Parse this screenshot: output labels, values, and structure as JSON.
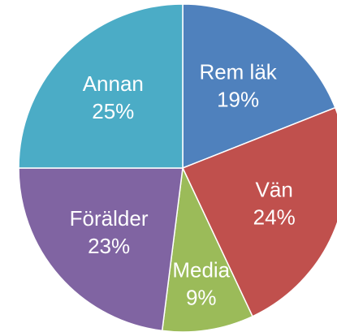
{
  "chart_data": {
    "type": "pie",
    "categories": [
      "Rem läk",
      "Vän",
      "Media",
      "Förälder",
      "Annan"
    ],
    "values": [
      19,
      24,
      9,
      23,
      25
    ],
    "value_labels": [
      "19%",
      "24%",
      "9%",
      "23%",
      "25%"
    ],
    "colors": [
      "#4f81bd",
      "#c0504d",
      "#9bbb59",
      "#8064a2",
      "#4bacc6"
    ]
  }
}
